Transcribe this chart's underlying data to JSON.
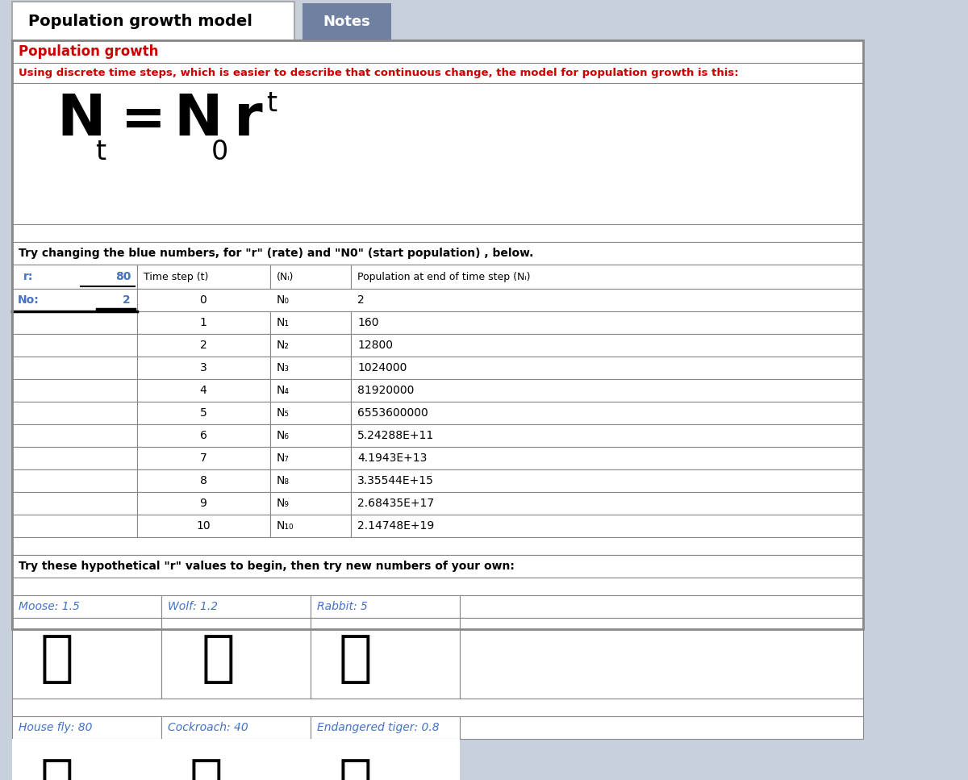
{
  "title": "Population growth model",
  "notes_tab": "Notes",
  "tab_bg": "#7080a0",
  "tab_text": "#ffffff",
  "section_title": "Population growth",
  "section_title_color": "#cc0000",
  "section_subtitle": "Using discrete time steps, which is easier to describe that continuous change, the model for population growth is this:",
  "section_subtitle_color": "#cc0000",
  "try_change_text": "Try changing the blue numbers, for \"r\" (rate) and \"N0\" (start population) , below.",
  "r_label": "r:",
  "r_value": "80",
  "n0_label": "No:",
  "n0_value": "2",
  "col1_header": "Time step (t)",
  "col2_header": "(Nᵢ)",
  "col3_header": "Population at end of time step (Nᵢ)",
  "time_steps": [
    0,
    1,
    2,
    3,
    4,
    5,
    6,
    7,
    8,
    9,
    10
  ],
  "n_labels": [
    "N₀",
    "N₁",
    "N₂",
    "N₃",
    "N₄",
    "N₅",
    "N₆",
    "N₇",
    "N₈",
    "N₉",
    "N₁₀"
  ],
  "pop_values": [
    "2",
    "160",
    "12800",
    "1024000",
    "81920000",
    "6553600000",
    "5.24288E+11",
    "4.1943E+13",
    "3.35544E+15",
    "2.68435E+17",
    "2.14748E+19"
  ],
  "try_text": "Try these hypothetical \"r\" values to begin, then try new numbers of your own:",
  "animal_labels_row1": [
    "Moose: 1.5",
    "Wolf: 1.2",
    "Rabbit: 5"
  ],
  "animal_labels_row2": [
    "House fly: 80",
    "Cockroach: 40",
    "Endangered tiger: 0.8"
  ],
  "animal_color": "#4472c4",
  "blue_color": "#4472c4",
  "red_color": "#cc0000",
  "bg_color": "#ffffff",
  "outer_bg": "#c8d0dc",
  "border_color": "#888888"
}
